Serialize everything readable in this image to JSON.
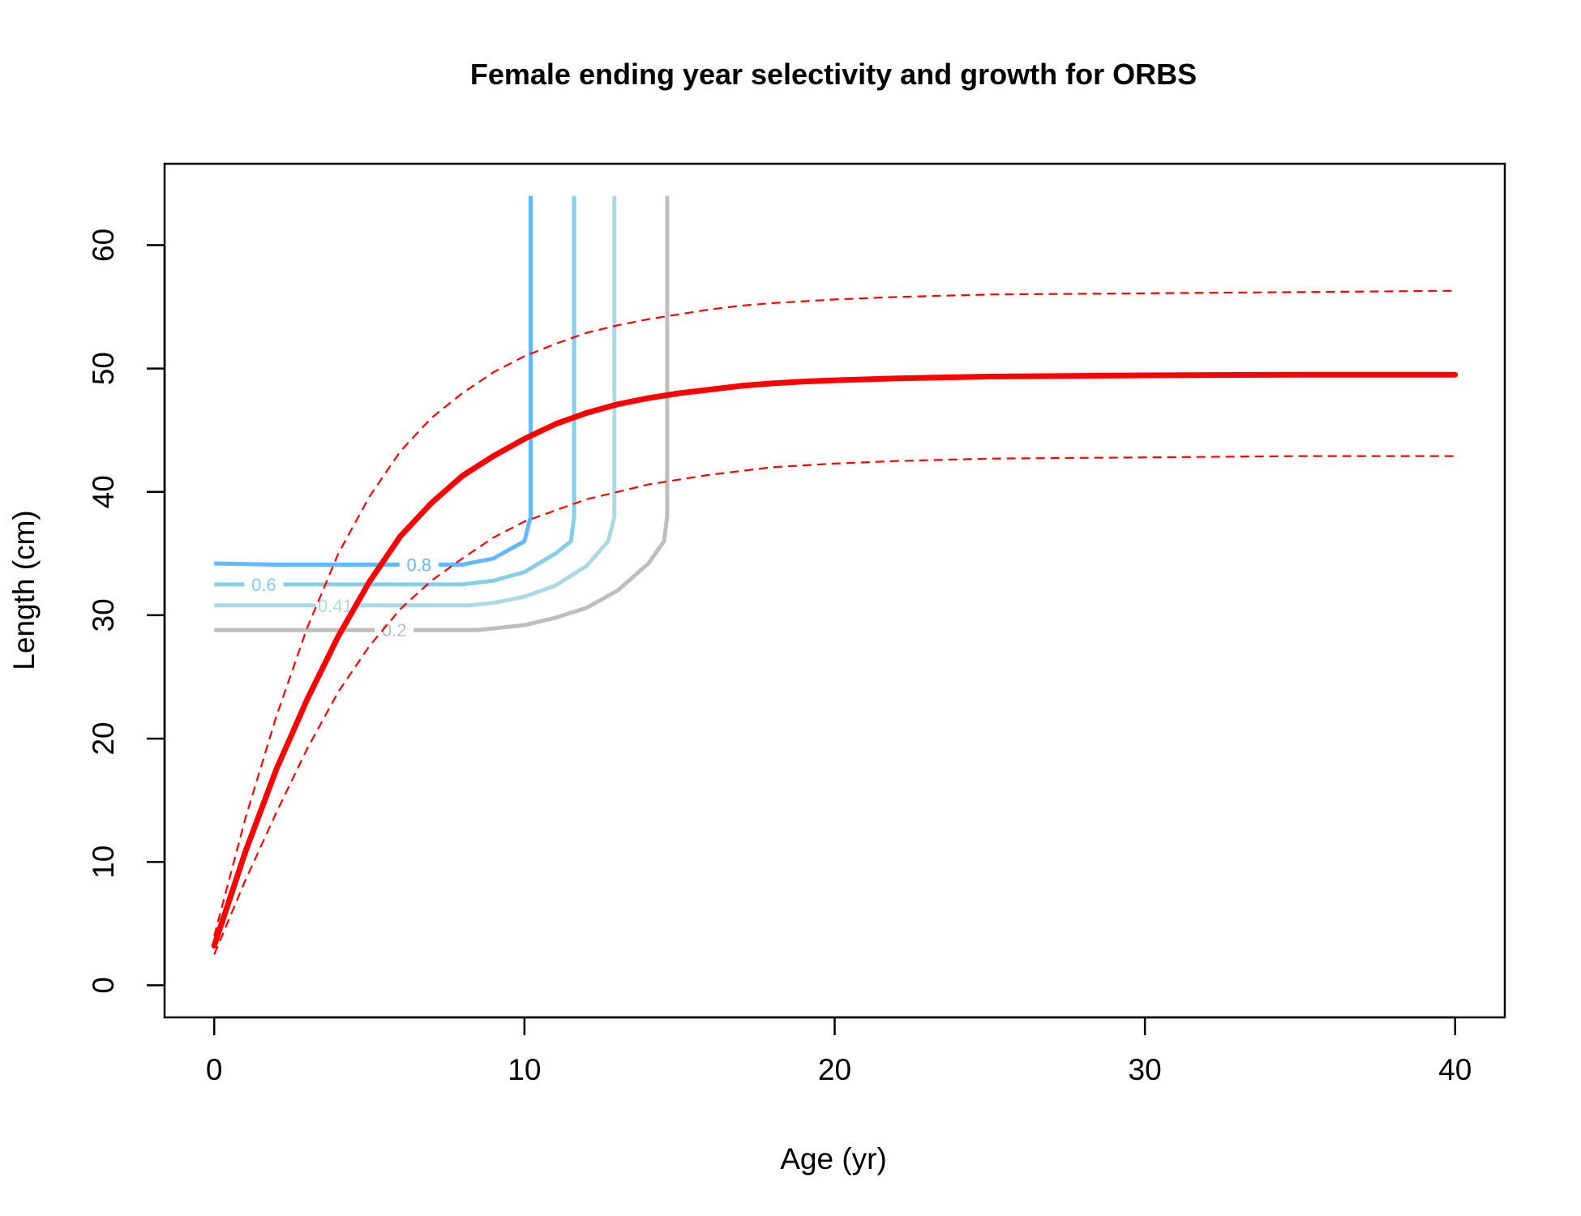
{
  "chart_data": {
    "type": "line",
    "title": "Female ending year selectivity and growth for ORBS",
    "xlabel": "Age (yr)",
    "ylabel": "Length (cm)",
    "xlim": [
      -1.6,
      41.6
    ],
    "ylim": [
      -2.6,
      66.6
    ],
    "x_ticks": [
      0,
      10,
      20,
      30,
      40
    ],
    "y_ticks": [
      0,
      10,
      20,
      30,
      40,
      50,
      60
    ],
    "grid": false,
    "legend": "none",
    "series": [
      {
        "role": "mean-length-at-age",
        "color": "#ff0000",
        "style": "solid-thick",
        "points": [
          [
            0,
            3.2
          ],
          [
            1,
            10.8
          ],
          [
            2,
            17.5
          ],
          [
            3,
            23.2
          ],
          [
            4,
            28.3
          ],
          [
            5,
            32.7
          ],
          [
            6,
            36.4
          ],
          [
            7,
            39.1
          ],
          [
            8,
            41.3
          ],
          [
            9,
            42.9
          ],
          [
            10,
            44.3
          ],
          [
            11,
            45.5
          ],
          [
            12,
            46.4
          ],
          [
            13,
            47.1
          ],
          [
            14,
            47.6
          ],
          [
            15,
            48.0
          ],
          [
            16,
            48.3
          ],
          [
            17,
            48.6
          ],
          [
            18,
            48.8
          ],
          [
            19,
            48.95
          ],
          [
            20,
            49.05
          ],
          [
            22,
            49.2
          ],
          [
            25,
            49.35
          ],
          [
            30,
            49.45
          ],
          [
            35,
            49.5
          ],
          [
            40,
            49.5
          ]
        ]
      },
      {
        "role": "upper-interval",
        "color": "#ff0000",
        "style": "dashed",
        "points": [
          [
            0,
            4.0
          ],
          [
            1,
            13.5
          ],
          [
            2,
            21.8
          ],
          [
            3,
            29.0
          ],
          [
            4,
            35.0
          ],
          [
            5,
            39.6
          ],
          [
            6,
            43.3
          ],
          [
            7,
            46.0
          ],
          [
            8,
            48.0
          ],
          [
            9,
            49.7
          ],
          [
            10,
            51.0
          ],
          [
            11,
            52.0
          ],
          [
            12,
            52.9
          ],
          [
            13,
            53.5
          ],
          [
            14,
            54.0
          ],
          [
            15,
            54.4
          ],
          [
            16,
            54.8
          ],
          [
            17,
            55.1
          ],
          [
            18,
            55.3
          ],
          [
            20,
            55.6
          ],
          [
            22,
            55.8
          ],
          [
            25,
            56.0
          ],
          [
            30,
            56.1
          ],
          [
            35,
            56.2
          ],
          [
            40,
            56.3
          ]
        ]
      },
      {
        "role": "lower-interval",
        "color": "#ff0000",
        "style": "dashed",
        "points": [
          [
            0,
            2.5
          ],
          [
            1,
            8.5
          ],
          [
            2,
            14.0
          ],
          [
            3,
            19.2
          ],
          [
            4,
            23.8
          ],
          [
            5,
            27.5
          ],
          [
            6,
            30.5
          ],
          [
            7,
            32.8
          ],
          [
            8,
            34.6
          ],
          [
            9,
            36.3
          ],
          [
            10,
            37.6
          ],
          [
            11,
            38.5
          ],
          [
            12,
            39.4
          ],
          [
            13,
            40.0
          ],
          [
            14,
            40.6
          ],
          [
            15,
            41.0
          ],
          [
            16,
            41.4
          ],
          [
            17,
            41.7
          ],
          [
            18,
            42.0
          ],
          [
            20,
            42.3
          ],
          [
            22,
            42.5
          ],
          [
            25,
            42.7
          ],
          [
            30,
            42.8
          ],
          [
            35,
            42.9
          ],
          [
            40,
            42.9
          ]
        ]
      }
    ],
    "contours": [
      {
        "label": "0.8",
        "color": "#63b8ff",
        "points": [
          [
            0,
            34.2
          ],
          [
            2,
            34.1
          ],
          [
            4,
            34.1
          ],
          [
            6,
            34.1
          ],
          [
            8,
            34.1
          ],
          [
            9,
            34.6
          ],
          [
            10,
            36.0
          ],
          [
            10.2,
            38.0
          ],
          [
            10.2,
            64.0
          ]
        ]
      },
      {
        "label": "0.6",
        "color": "#87ceeb",
        "points": [
          [
            0,
            32.5
          ],
          [
            2,
            32.5
          ],
          [
            4,
            32.5
          ],
          [
            6,
            32.5
          ],
          [
            8,
            32.5
          ],
          [
            9,
            32.8
          ],
          [
            10,
            33.5
          ],
          [
            11,
            35.0
          ],
          [
            11.5,
            36.0
          ],
          [
            11.6,
            38.0
          ],
          [
            11.6,
            64.0
          ]
        ]
      },
      {
        "label": "0.41",
        "color": "#add8e6",
        "points": [
          [
            0,
            30.8
          ],
          [
            2,
            30.8
          ],
          [
            4,
            30.8
          ],
          [
            6,
            30.8
          ],
          [
            8.2,
            30.8
          ],
          [
            9,
            31.0
          ],
          [
            10,
            31.5
          ],
          [
            11,
            32.4
          ],
          [
            12,
            34.0
          ],
          [
            12.7,
            36.0
          ],
          [
            12.9,
            38.0
          ],
          [
            12.9,
            64.0
          ]
        ]
      },
      {
        "label": "0.2",
        "color": "#bebebe",
        "points": [
          [
            0,
            28.8
          ],
          [
            2,
            28.8
          ],
          [
            4,
            28.8
          ],
          [
            6,
            28.8
          ],
          [
            8.5,
            28.8
          ],
          [
            10,
            29.2
          ],
          [
            11,
            29.8
          ],
          [
            12,
            30.6
          ],
          [
            13,
            32.0
          ],
          [
            14,
            34.2
          ],
          [
            14.5,
            36.0
          ],
          [
            14.6,
            38.0
          ],
          [
            14.6,
            64.0
          ]
        ]
      }
    ]
  }
}
